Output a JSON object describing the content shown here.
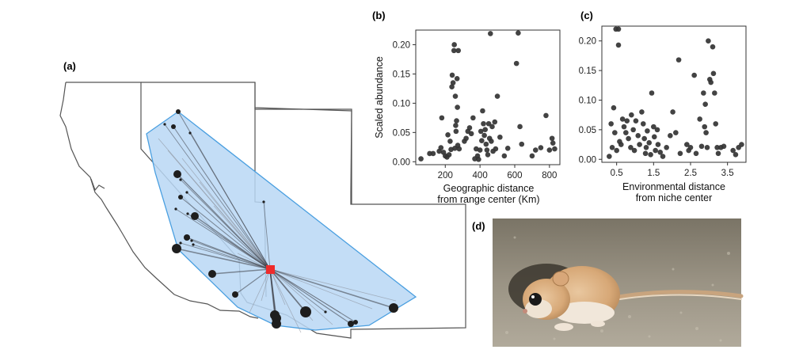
{
  "panel_labels": {
    "a": "(a)",
    "b": "(b)",
    "c": "(c)",
    "d": "(d)"
  },
  "colors": {
    "hull_fill": "#b9d7f4",
    "hull_stroke": "#4a9fe0",
    "center": "#ef2b2b",
    "point": "#1e1e1e",
    "border": "#555555"
  },
  "map": {
    "icon": "range-map",
    "center_marker": "red-square",
    "occurrences": [
      {
        "w": 3
      },
      {
        "w": 2
      },
      {
        "w": 3
      },
      {
        "w": 2
      },
      {
        "w": 5
      },
      {
        "w": 2
      },
      {
        "w": 2
      },
      {
        "w": 3
      },
      {
        "w": 2
      },
      {
        "w": 2
      },
      {
        "w": 5
      },
      {
        "w": 4
      },
      {
        "w": 2
      },
      {
        "w": 2
      },
      {
        "w": 2
      },
      {
        "w": 6
      },
      {
        "w": 5
      },
      {
        "w": 4
      },
      {
        "w": 2
      },
      {
        "w": 6
      },
      {
        "w": 6
      },
      {
        "w": 7
      },
      {
        "w": 6
      },
      {
        "w": 2
      },
      {
        "w": 4
      },
      {
        "w": 3
      },
      {
        "w": 6
      }
    ]
  },
  "photo": {
    "icon": "kangaroo-rat-photo"
  },
  "chart_data": [
    {
      "id": "b",
      "type": "scatter",
      "title": "",
      "ylabel": "Scaled abundance",
      "xlabel_lines": [
        "Geographic distance",
        "from range center (Km)"
      ],
      "xlim": [
        30,
        860
      ],
      "ylim": [
        -0.005,
        0.225
      ],
      "xticks": [
        200,
        400,
        600,
        800
      ],
      "xtick_labels": [
        "200",
        "400",
        "600",
        "800"
      ],
      "yticks": [
        0.0,
        0.05,
        0.1,
        0.15,
        0.2
      ],
      "ytick_labels": [
        "0.00",
        "0.05",
        "0.10",
        "0.15",
        "0.20"
      ],
      "points": [
        [
          60,
          0.005
        ],
        [
          110,
          0.014
        ],
        [
          130,
          0.014
        ],
        [
          165,
          0.018
        ],
        [
          175,
          0.024
        ],
        [
          190,
          0.016
        ],
        [
          200,
          0.01
        ],
        [
          210,
          0.008
        ],
        [
          215,
          0.046
        ],
        [
          222,
          0.012
        ],
        [
          228,
          0.035
        ],
        [
          233,
          0.021
        ],
        [
          238,
          0.128
        ],
        [
          240,
          0.148
        ],
        [
          245,
          0.135
        ],
        [
          250,
          0.19
        ],
        [
          252,
          0.2
        ],
        [
          255,
          0.023
        ],
        [
          258,
          0.112
        ],
        [
          260,
          0.062
        ],
        [
          262,
          0.052
        ],
        [
          265,
          0.07
        ],
        [
          268,
          0.142
        ],
        [
          270,
          0.093
        ],
        [
          272,
          0.028
        ],
        [
          275,
          0.19
        ],
        [
          280,
          0.022
        ],
        [
          180,
          0.075
        ],
        [
          310,
          0.035
        ],
        [
          320,
          0.04
        ],
        [
          330,
          0.052
        ],
        [
          340,
          0.058
        ],
        [
          350,
          0.048
        ],
        [
          360,
          0.075
        ],
        [
          370,
          0.005
        ],
        [
          378,
          0.022
        ],
        [
          386,
          0.01
        ],
        [
          392,
          0.004
        ],
        [
          400,
          0.02
        ],
        [
          405,
          0.052
        ],
        [
          410,
          0.036
        ],
        [
          415,
          0.087
        ],
        [
          420,
          0.065
        ],
        [
          425,
          0.045
        ],
        [
          430,
          0.055
        ],
        [
          435,
          0.03
        ],
        [
          440,
          0.02
        ],
        [
          445,
          0.012
        ],
        [
          450,
          0.065
        ],
        [
          455,
          0.04
        ],
        [
          460,
          0.219
        ],
        [
          465,
          0.035
        ],
        [
          470,
          0.06
        ],
        [
          475,
          0.018
        ],
        [
          485,
          0.068
        ],
        [
          490,
          0.022
        ],
        [
          500,
          0.112
        ],
        [
          515,
          0.042
        ],
        [
          540,
          0.01
        ],
        [
          560,
          0.023
        ],
        [
          610,
          0.168
        ],
        [
          620,
          0.22
        ],
        [
          630,
          0.06
        ],
        [
          640,
          0.03
        ],
        [
          700,
          0.01
        ],
        [
          720,
          0.02
        ],
        [
          750,
          0.024
        ],
        [
          780,
          0.079
        ],
        [
          800,
          0.02
        ],
        [
          815,
          0.04
        ],
        [
          820,
          0.032
        ],
        [
          830,
          0.022
        ]
      ]
    },
    {
      "id": "c",
      "type": "scatter",
      "title": "",
      "ylabel": "",
      "xlabel_lines": [
        "Environmental distance",
        "from niche center"
      ],
      "xlim": [
        0.1,
        4.0
      ],
      "ylim": [
        -0.005,
        0.225
      ],
      "xticks": [
        0.5,
        1.5,
        2.5,
        3.5
      ],
      "xtick_labels": [
        "0.5",
        "1.5",
        "2.5",
        "3.5"
      ],
      "yticks": [
        0.0,
        0.05,
        0.1,
        0.15,
        0.2
      ],
      "ytick_labels": [
        "0.00",
        "0.05",
        "0.10",
        "0.15",
        "0.20"
      ],
      "points": [
        [
          0.48,
          0.22
        ],
        [
          0.55,
          0.22
        ],
        [
          0.55,
          0.193
        ],
        [
          0.42,
          0.087
        ],
        [
          0.35,
          0.06
        ],
        [
          0.3,
          0.005
        ],
        [
          0.38,
          0.02
        ],
        [
          0.45,
          0.045
        ],
        [
          0.5,
          0.015
        ],
        [
          0.58,
          0.03
        ],
        [
          0.62,
          0.025
        ],
        [
          0.66,
          0.068
        ],
        [
          0.7,
          0.055
        ],
        [
          0.75,
          0.045
        ],
        [
          0.78,
          0.065
        ],
        [
          0.82,
          0.035
        ],
        [
          0.88,
          0.02
        ],
        [
          0.9,
          0.075
        ],
        [
          0.95,
          0.05
        ],
        [
          0.98,
          0.015
        ],
        [
          1.02,
          0.065
        ],
        [
          1.08,
          0.04
        ],
        [
          1.12,
          0.025
        ],
        [
          1.18,
          0.08
        ],
        [
          1.22,
          0.06
        ],
        [
          1.25,
          0.035
        ],
        [
          1.28,
          0.01
        ],
        [
          1.3,
          0.02
        ],
        [
          1.33,
          0.048
        ],
        [
          1.38,
          0.028
        ],
        [
          1.42,
          0.008
        ],
        [
          1.45,
          0.112
        ],
        [
          1.5,
          0.055
        ],
        [
          1.52,
          0.038
        ],
        [
          1.55,
          0.015
        ],
        [
          1.6,
          0.05
        ],
        [
          1.62,
          0.025
        ],
        [
          1.68,
          0.012
        ],
        [
          1.75,
          0.005
        ],
        [
          1.85,
          0.02
        ],
        [
          1.95,
          0.04
        ],
        [
          2.02,
          0.08
        ],
        [
          2.1,
          0.045
        ],
        [
          2.18,
          0.168
        ],
        [
          2.22,
          0.01
        ],
        [
          2.4,
          0.025
        ],
        [
          2.45,
          0.015
        ],
        [
          2.5,
          0.02
        ],
        [
          2.6,
          0.142
        ],
        [
          2.65,
          0.01
        ],
        [
          2.75,
          0.068
        ],
        [
          2.8,
          0.022
        ],
        [
          2.85,
          0.112
        ],
        [
          2.88,
          0.055
        ],
        [
          2.9,
          0.093
        ],
        [
          2.92,
          0.045
        ],
        [
          2.95,
          0.02
        ],
        [
          2.98,
          0.2
        ],
        [
          3.02,
          0.135
        ],
        [
          3.05,
          0.13
        ],
        [
          3.1,
          0.19
        ],
        [
          3.12,
          0.145
        ],
        [
          3.15,
          0.112
        ],
        [
          3.18,
          0.06
        ],
        [
          3.22,
          0.02
        ],
        [
          3.25,
          0.01
        ],
        [
          3.32,
          0.02
        ],
        [
          3.4,
          0.022
        ],
        [
          3.65,
          0.015
        ],
        [
          3.72,
          0.008
        ],
        [
          3.8,
          0.02
        ],
        [
          3.88,
          0.025
        ]
      ]
    }
  ]
}
